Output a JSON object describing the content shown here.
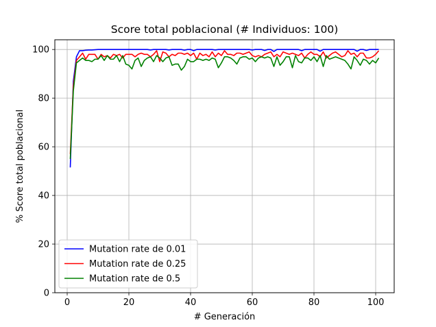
{
  "chart_data": {
    "type": "line",
    "title": "Score total poblacional (# Individuos: 100)",
    "xlabel": "# Generación",
    "ylabel": "% Score total poblacional",
    "xlim": [
      -4,
      106
    ],
    "ylim": [
      0,
      104
    ],
    "xticks": [
      0,
      20,
      40,
      60,
      80,
      100
    ],
    "yticks": [
      0,
      20,
      40,
      60,
      80,
      100
    ],
    "grid": true,
    "legend_position": "lower-left",
    "x": [
      1,
      2,
      3,
      4,
      5,
      6,
      7,
      8,
      9,
      10,
      11,
      12,
      13,
      14,
      15,
      16,
      17,
      18,
      19,
      20,
      21,
      22,
      23,
      24,
      25,
      26,
      27,
      28,
      29,
      30,
      31,
      32,
      33,
      34,
      35,
      36,
      37,
      38,
      39,
      40,
      41,
      42,
      43,
      44,
      45,
      46,
      47,
      48,
      49,
      50,
      51,
      52,
      53,
      54,
      55,
      56,
      57,
      58,
      59,
      60,
      61,
      62,
      63,
      64,
      65,
      66,
      67,
      68,
      69,
      70,
      71,
      72,
      73,
      74,
      75,
      76,
      77,
      78,
      79,
      80,
      81,
      82,
      83,
      84,
      85,
      86,
      87,
      88,
      89,
      90,
      91,
      92,
      93,
      94,
      95,
      96,
      97,
      98,
      99,
      100,
      101
    ],
    "series": [
      {
        "name": "Mutation rate de 0.01",
        "color": "#0000ff",
        "values": [
          51.5,
          87,
          97,
          99.5,
          99.5,
          99.7,
          99.8,
          99.8,
          99.9,
          100,
          100,
          100,
          100,
          100,
          100,
          100,
          100,
          100,
          100,
          100,
          100,
          100,
          100,
          100,
          100,
          100,
          99.8,
          100,
          100,
          100,
          100,
          100,
          99.8,
          100,
          100,
          100,
          100,
          99.7,
          100,
          100,
          99.5,
          100,
          100,
          100,
          100,
          100,
          100,
          99.8,
          100,
          100,
          100,
          100,
          100,
          100,
          100,
          100,
          100,
          100,
          100,
          99.8,
          100,
          100,
          100,
          99.6,
          100,
          100,
          99.2,
          100,
          100,
          100,
          100,
          100,
          100,
          100,
          100,
          99.5,
          100,
          100,
          100,
          100,
          100,
          99.3,
          100,
          100,
          100,
          100,
          100,
          100,
          100,
          100,
          100,
          100,
          100,
          99.3,
          100,
          100,
          99.6,
          100,
          100,
          100,
          100
        ]
      },
      {
        "name": "Mutation rate de 0.25",
        "color": "#ff0000",
        "values": [
          57,
          85,
          95.5,
          97,
          98.5,
          96,
          98,
          98,
          98,
          96,
          98,
          97,
          97.5,
          96.5,
          98,
          97.5,
          98,
          96.5,
          98,
          98,
          98,
          97,
          98,
          98.5,
          98,
          98,
          97,
          98,
          99.5,
          95,
          99,
          98.5,
          97,
          98,
          97.5,
          98.5,
          98.5,
          98,
          98.5,
          97.5,
          98.5,
          96,
          98.5,
          97.5,
          98,
          97,
          99,
          97,
          98.5,
          97.5,
          99.5,
          98,
          98,
          97.5,
          98.5,
          98.5,
          98,
          98.5,
          99,
          97.5,
          97,
          97.5,
          97,
          98,
          98.5,
          99,
          97,
          98,
          97,
          99,
          98.5,
          98,
          98.5,
          98,
          97.5,
          98.5,
          96.5,
          98,
          99,
          98,
          98,
          97,
          99,
          96.5,
          97.5,
          98.5,
          99,
          98,
          97,
          97.5,
          99.5,
          98,
          98.5,
          97,
          98.5,
          98.5,
          96.5,
          96.5,
          97,
          98,
          99.5
        ]
      },
      {
        "name": "Mutation rate de 0.5",
        "color": "#008000",
        "values": [
          55,
          83,
          94.5,
          95.5,
          96.5,
          95.5,
          95.5,
          95,
          96,
          96,
          97.5,
          95.5,
          97.5,
          96,
          96,
          97.5,
          95,
          97.5,
          94,
          93.5,
          92,
          95.5,
          96.5,
          93,
          95.5,
          96.5,
          97,
          95,
          97.5,
          96.5,
          95,
          96.5,
          97,
          93.5,
          94,
          94,
          91.5,
          93,
          96,
          95,
          95,
          96,
          96,
          95.5,
          96,
          95.5,
          96.5,
          96,
          92.5,
          94.5,
          97,
          97,
          96.5,
          95.5,
          94,
          96.5,
          97,
          97,
          96,
          96.5,
          95,
          96.5,
          97,
          96.5,
          97,
          96.5,
          93,
          97,
          93.5,
          95,
          97,
          97,
          92.5,
          97.5,
          95,
          94.5,
          96.5,
          96.5,
          95.5,
          97,
          95,
          97.5,
          93,
          97.5,
          96,
          96.5,
          97,
          96.5,
          96,
          95.5,
          94,
          92,
          97,
          95.5,
          93.5,
          96,
          95.5,
          94,
          95.5,
          94.5,
          96.5
        ]
      }
    ]
  }
}
